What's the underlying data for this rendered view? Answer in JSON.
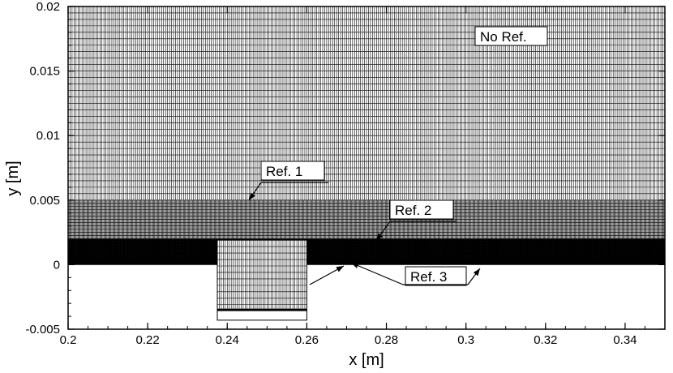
{
  "figure": {
    "x_axis": {
      "label": "x [m]",
      "range": [
        0.2,
        0.35
      ],
      "ticks": [
        "0.2",
        "0.22",
        "0.24",
        "0.26",
        "0.28",
        "0.3",
        "0.32",
        "0.34"
      ]
    },
    "y_axis": {
      "label": "y [m]",
      "range": [
        -0.005,
        0.02
      ],
      "ticks": [
        "-0.005",
        "0",
        "0.005",
        "0.01",
        "0.015",
        "0.02"
      ]
    },
    "mesh_regions": [
      {
        "name": "No Ref.",
        "y_range": [
          0.005,
          0.02
        ],
        "cell_size": 0.0005
      },
      {
        "name": "Ref. 1",
        "y_range": [
          0.002,
          0.005
        ],
        "cell_size": 0.00025
      },
      {
        "name": "Ref. 2",
        "y_range": [
          0.0005,
          0.002
        ],
        "cell_size": 0.000125
      },
      {
        "name": "Ref. 3",
        "y_range": [
          0,
          0.0005
        ],
        "cell_size": 6.25e-05
      }
    ],
    "cavity": {
      "x_range": [
        0.2375,
        0.26
      ],
      "y_range": [
        -0.0043,
        0.0019
      ]
    },
    "labels": {
      "no_ref": "No Ref.",
      "ref1": "Ref. 1",
      "ref2": "Ref. 2",
      "ref3": "Ref. 3"
    },
    "colors": {
      "mesh_line": "#000000",
      "background": "#ffffff"
    }
  }
}
